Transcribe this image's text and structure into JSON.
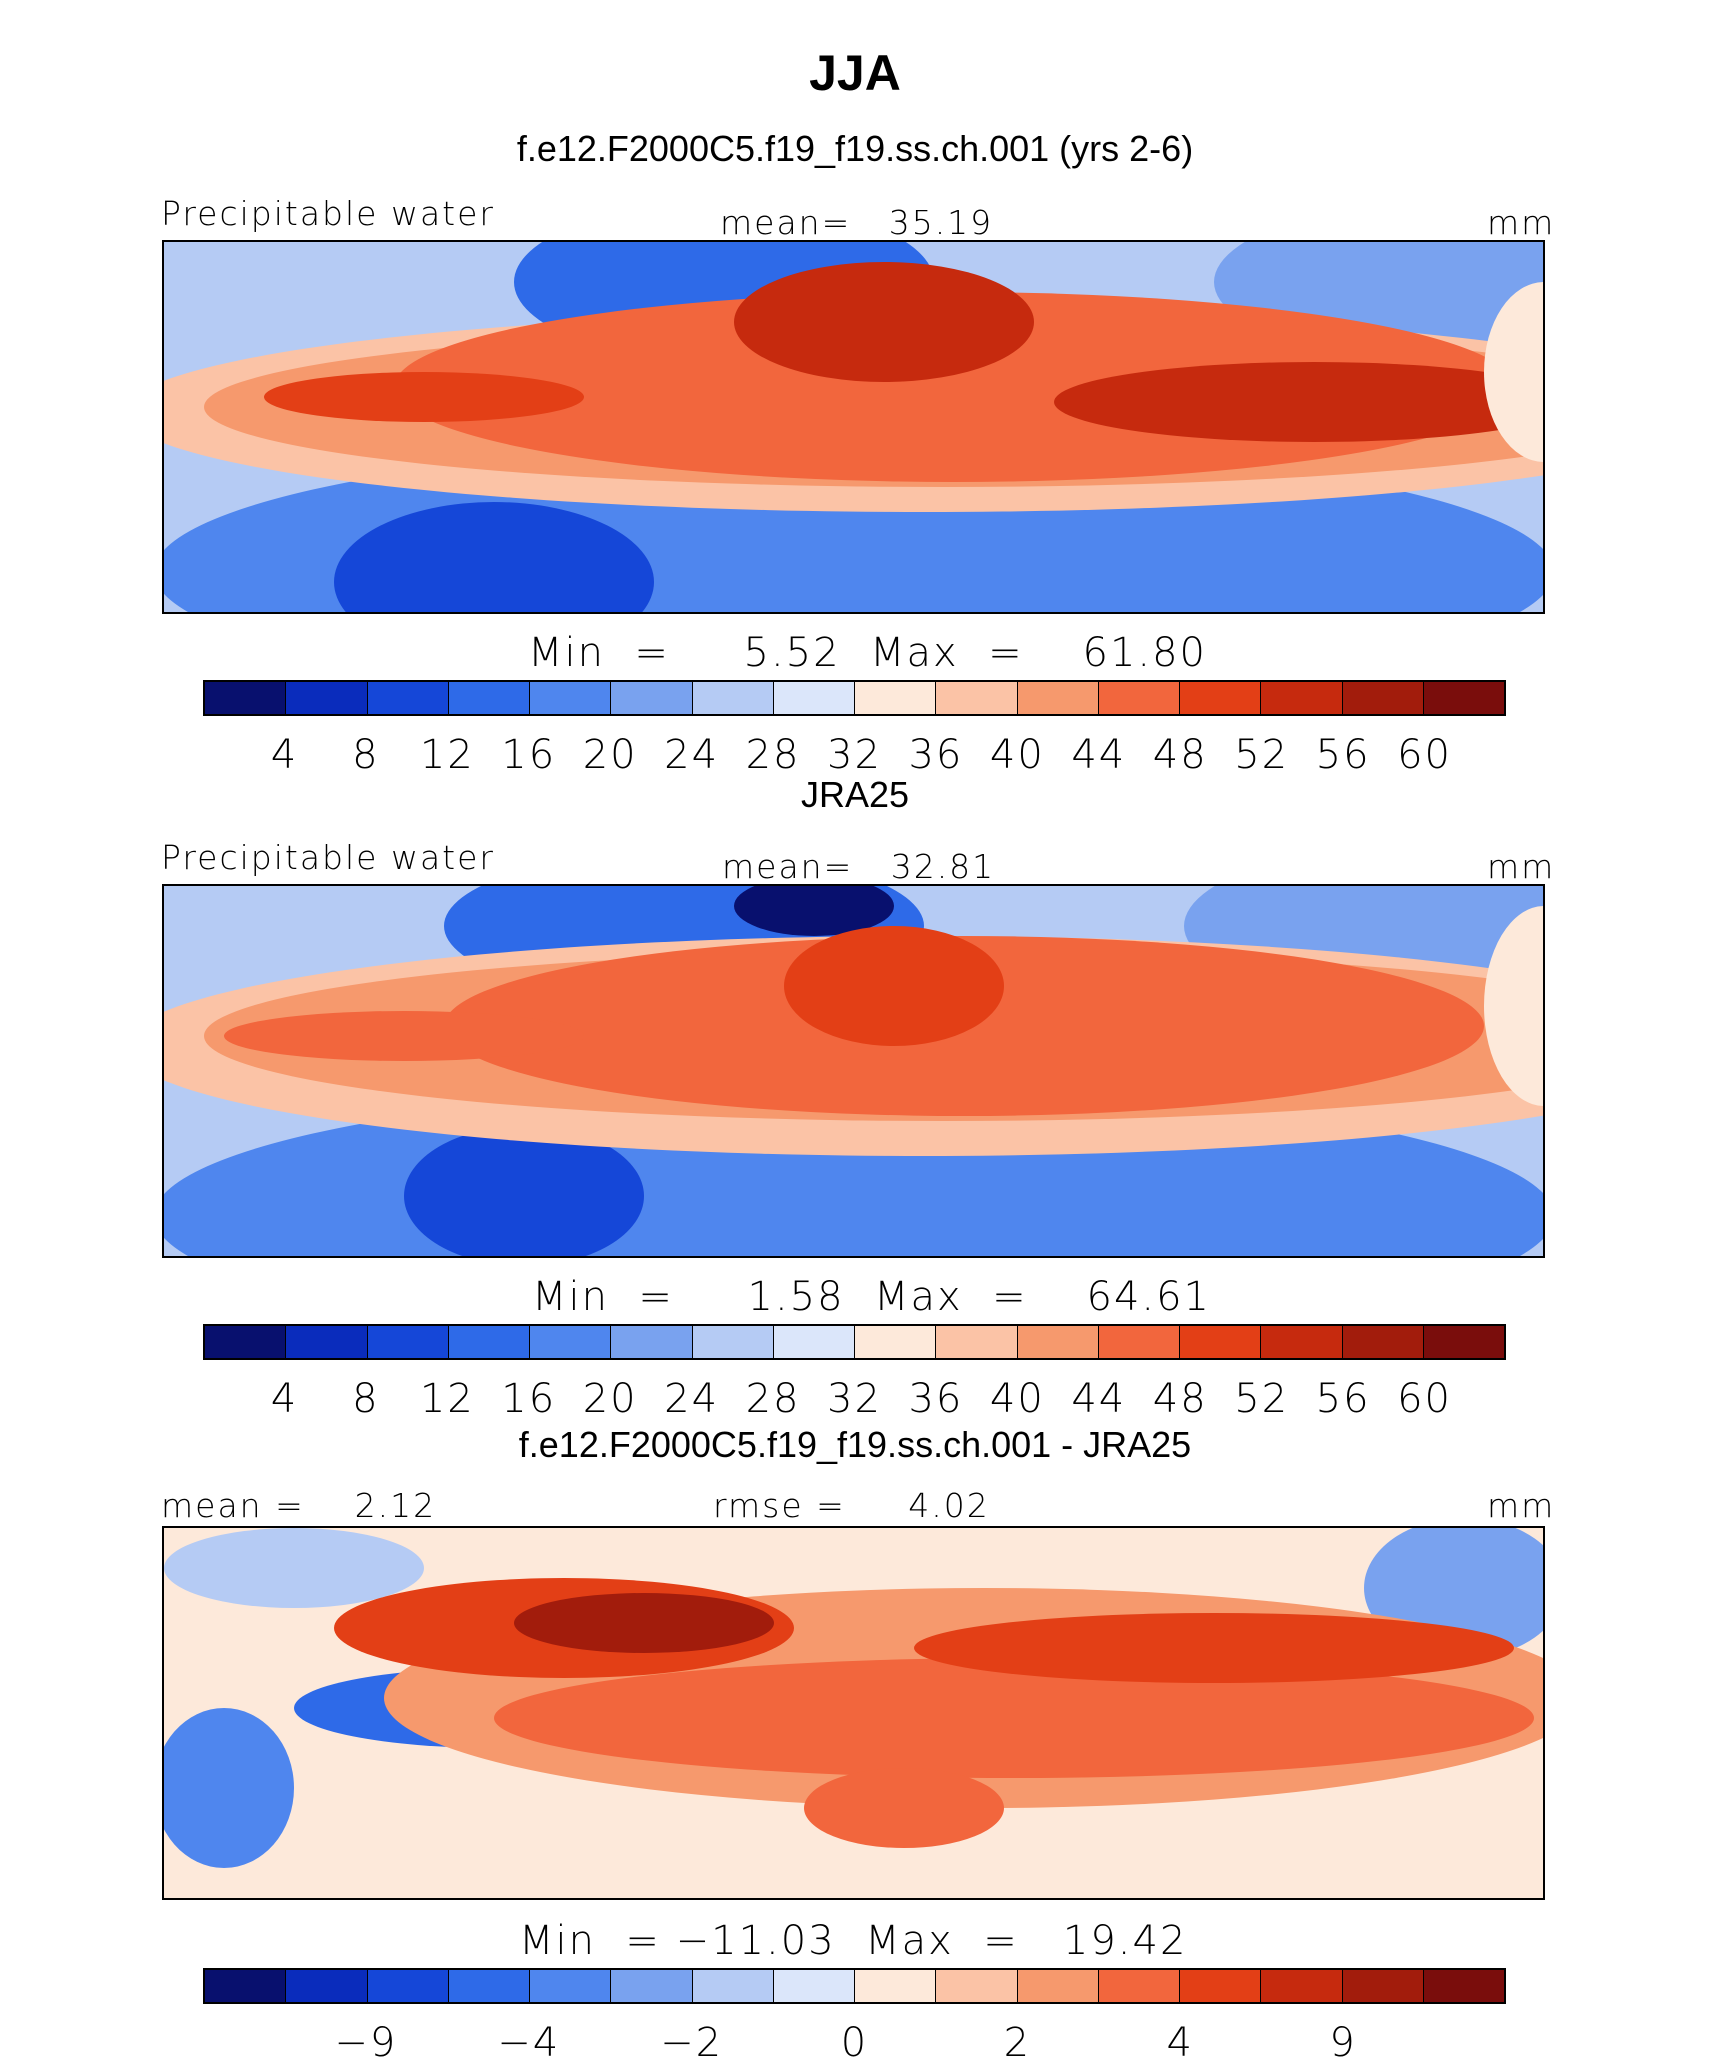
{
  "title": "JJA",
  "colors": [
    "#08106e",
    "#0a2cbc",
    "#1547d8",
    "#2e6ae8",
    "#4f86ee",
    "#79a2ef",
    "#b5cbf4",
    "#dbe6fa",
    "#fde9da",
    "#fbc3a6",
    "#f6996d",
    "#f2663d",
    "#e33f16",
    "#c62a0e",
    "#a21c0c",
    "#7a0d0c"
  ],
  "chart_data": [
    {
      "type": "heatmap",
      "title": "f.e12.F2000C5.f19_f19.ss.ch.001 (yrs 2-6)",
      "left_label": "Precipitable water",
      "center_label": "mean=   35.19",
      "units": "mm",
      "minmax_label": "Min  =     5.52  Max  =    61.80",
      "min": 5.52,
      "max": 61.8,
      "mean": 35.19,
      "colorbar_ticks": [
        "4",
        "8",
        "12",
        "16",
        "20",
        "24",
        "28",
        "32",
        "36",
        "40",
        "44",
        "48",
        "52",
        "56",
        "60"
      ],
      "colorbar_levels": [
        4,
        8,
        12,
        16,
        20,
        24,
        28,
        32,
        36,
        40,
        44,
        48,
        52,
        56,
        60
      ]
    },
    {
      "type": "heatmap",
      "title": "JRA25",
      "left_label": "Precipitable water",
      "center_label": "mean=   32.81",
      "units": "mm",
      "minmax_label": "Min  =     1.58  Max  =    64.61",
      "min": 1.58,
      "max": 64.61,
      "mean": 32.81,
      "colorbar_ticks": [
        "4",
        "8",
        "12",
        "16",
        "20",
        "24",
        "28",
        "32",
        "36",
        "40",
        "44",
        "48",
        "52",
        "56",
        "60"
      ],
      "colorbar_levels": [
        4,
        8,
        12,
        16,
        20,
        24,
        28,
        32,
        36,
        40,
        44,
        48,
        52,
        56,
        60
      ]
    },
    {
      "type": "heatmap",
      "title": "f.e12.F2000C5.f19_f19.ss.ch.001 - JRA25",
      "left_label": "mean =    2.12",
      "center_label": "rmse =     4.02",
      "units": "mm",
      "minmax_label": "Min  = −11.03  Max  =   19.42",
      "min": -11.03,
      "max": 19.42,
      "mean": 2.12,
      "rmse": 4.02,
      "colorbar_ticks": [
        "−9",
        "−4",
        "−2",
        "0",
        "2",
        "4",
        "9"
      ],
      "colorbar_levels": [
        -9,
        -4,
        -2,
        0,
        2,
        4,
        9
      ]
    }
  ]
}
